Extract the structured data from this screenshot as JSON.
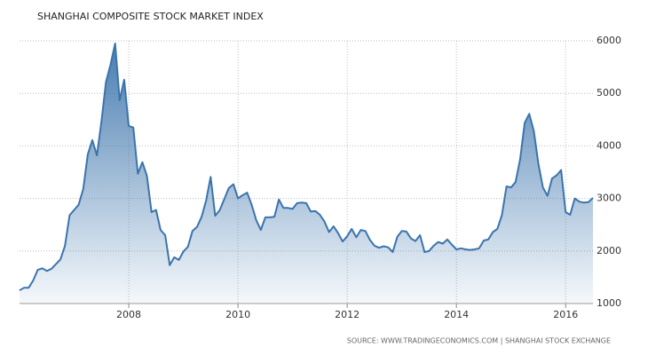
{
  "chart_data": {
    "type": "area",
    "title": "SHANGHAI COMPOSITE STOCK MARKET INDEX",
    "source": "SOURCE: WWW.TRADINGECONOMICS.COM | SHANGHAI STOCK EXCHANGE",
    "x": [
      2006,
      2006.083,
      2006.167,
      2006.25,
      2006.333,
      2006.417,
      2006.5,
      2006.583,
      2006.667,
      2006.75,
      2006.833,
      2006.917,
      2007,
      2007.083,
      2007.167,
      2007.25,
      2007.333,
      2007.417,
      2007.5,
      2007.583,
      2007.667,
      2007.75,
      2007.833,
      2007.917,
      2008,
      2008.083,
      2008.167,
      2008.25,
      2008.333,
      2008.417,
      2008.5,
      2008.583,
      2008.667,
      2008.75,
      2008.833,
      2008.917,
      2009,
      2009.083,
      2009.167,
      2009.25,
      2009.333,
      2009.417,
      2009.5,
      2009.583,
      2009.667,
      2009.75,
      2009.833,
      2009.917,
      2010,
      2010.083,
      2010.167,
      2010.25,
      2010.333,
      2010.417,
      2010.5,
      2010.583,
      2010.667,
      2010.75,
      2010.833,
      2010.917,
      2011,
      2011.083,
      2011.167,
      2011.25,
      2011.333,
      2011.417,
      2011.5,
      2011.583,
      2011.667,
      2011.75,
      2011.833,
      2011.917,
      2012,
      2012.083,
      2012.167,
      2012.25,
      2012.333,
      2012.417,
      2012.5,
      2012.583,
      2012.667,
      2012.75,
      2012.833,
      2012.917,
      2013,
      2013.083,
      2013.167,
      2013.25,
      2013.333,
      2013.417,
      2013.5,
      2013.583,
      2013.667,
      2013.75,
      2013.833,
      2013.917,
      2014,
      2014.083,
      2014.167,
      2014.25,
      2014.333,
      2014.417,
      2014.5,
      2014.583,
      2014.667,
      2014.75,
      2014.833,
      2014.917,
      2015,
      2015.083,
      2015.167,
      2015.25,
      2015.333,
      2015.417,
      2015.5,
      2015.583,
      2015.667,
      2015.75,
      2015.833,
      2015.917,
      2016,
      2016.083,
      2016.167,
      2016.25,
      2016.333,
      2016.417,
      2016.5
    ],
    "series": [
      {
        "color": "#3a74ad",
        "values": [
          1250,
          1300,
          1300,
          1440,
          1640,
          1670,
          1620,
          1660,
          1750,
          1840,
          2100,
          2680,
          2780,
          2880,
          3180,
          3840,
          4110,
          3820,
          4470,
          5220,
          5550,
          5950,
          4870,
          5260,
          4380,
          4350,
          3470,
          3690,
          3430,
          2740,
          2780,
          2400,
          2300,
          1730,
          1880,
          1830,
          1990,
          2080,
          2380,
          2460,
          2650,
          2960,
          3410,
          2670,
          2780,
          2990,
          3200,
          3270,
          3000,
          3060,
          3110,
          2880,
          2590,
          2400,
          2640,
          2640,
          2650,
          2980,
          2820,
          2820,
          2800,
          2910,
          2920,
          2910,
          2750,
          2760,
          2690,
          2560,
          2360,
          2470,
          2340,
          2180,
          2280,
          2420,
          2260,
          2400,
          2380,
          2210,
          2100,
          2060,
          2090,
          2070,
          1980,
          2270,
          2380,
          2370,
          2240,
          2190,
          2300,
          1980,
          2000,
          2100,
          2170,
          2140,
          2220,
          2120,
          2030,
          2050,
          2030,
          2020,
          2030,
          2050,
          2200,
          2220,
          2360,
          2420,
          2680,
          3230,
          3210,
          3310,
          3750,
          4440,
          4610,
          4280,
          3660,
          3210,
          3050,
          3380,
          3440,
          3540,
          2740,
          2690,
          3000,
          2940,
          2920,
          2930,
          3010
        ]
      }
    ],
    "xlim": [
      2006,
      2016.5
    ],
    "xticks": [
      2008,
      2010,
      2012,
      2014,
      2016
    ],
    "ylim": [
      1000,
      6000
    ],
    "yticks": [
      1000,
      2000,
      3000,
      4000,
      5000,
      6000
    ],
    "grid": true
  }
}
